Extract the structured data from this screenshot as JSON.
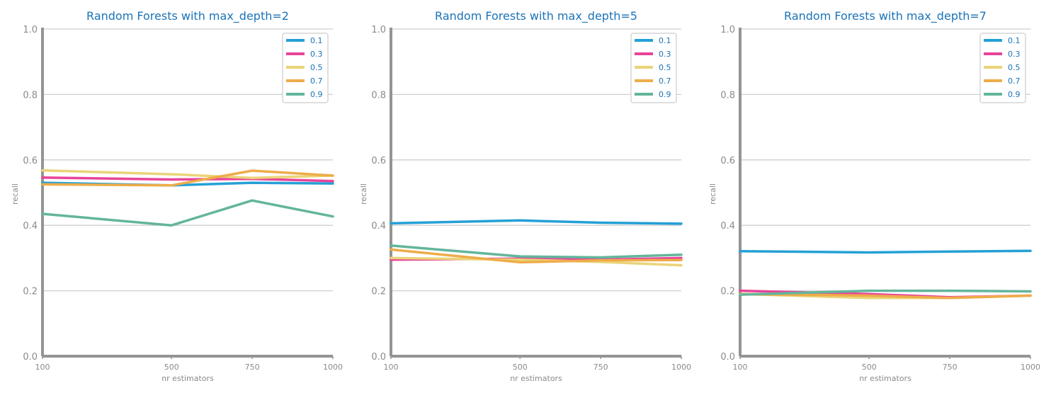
{
  "chart_data": [
    {
      "type": "line",
      "title": "Random Forests with max_depth=2",
      "xlabel": "nr estimators",
      "ylabel": "recall",
      "x": [
        100,
        500,
        750,
        1000
      ],
      "xlim": [
        100,
        1000
      ],
      "ylim": [
        0.0,
        1.0
      ],
      "yticks": [
        "0.0",
        "0.2",
        "0.4",
        "0.6",
        "0.8",
        "1.0"
      ],
      "xticks": [
        "100",
        "500",
        "750",
        "1000"
      ],
      "grid": "horizontal",
      "legend": "top-right",
      "series": [
        {
          "name": "0.1",
          "values": [
            0.53,
            0.522,
            0.53,
            0.528
          ]
        },
        {
          "name": "0.3",
          "values": [
            0.546,
            0.54,
            0.542,
            0.535
          ]
        },
        {
          "name": "0.5",
          "values": [
            0.568,
            0.556,
            0.545,
            0.552
          ]
        },
        {
          "name": "0.7",
          "values": [
            0.525,
            0.522,
            0.567,
            0.552
          ]
        },
        {
          "name": "0.9",
          "values": [
            0.435,
            0.4,
            0.476,
            0.427
          ]
        }
      ]
    },
    {
      "type": "line",
      "title": "Random Forests with max_depth=5",
      "xlabel": "nr estimators",
      "ylabel": "recall",
      "x": [
        100,
        500,
        750,
        1000
      ],
      "xlim": [
        100,
        1000
      ],
      "ylim": [
        0.0,
        1.0
      ],
      "yticks": [
        "0.0",
        "0.2",
        "0.4",
        "0.6",
        "0.8",
        "1.0"
      ],
      "xticks": [
        "100",
        "500",
        "750",
        "1000"
      ],
      "grid": "horizontal",
      "legend": "top-right",
      "series": [
        {
          "name": "0.1",
          "values": [
            0.406,
            0.415,
            0.408,
            0.405
          ]
        },
        {
          "name": "0.3",
          "values": [
            0.295,
            0.298,
            0.295,
            0.3
          ]
        },
        {
          "name": "0.5",
          "values": [
            0.3,
            0.295,
            0.288,
            0.278
          ]
        },
        {
          "name": "0.7",
          "values": [
            0.326,
            0.287,
            0.293,
            0.294
          ]
        },
        {
          "name": "0.9",
          "values": [
            0.338,
            0.305,
            0.302,
            0.31
          ]
        }
      ]
    },
    {
      "type": "line",
      "title": "Random Forests with max_depth=7",
      "xlabel": "nr estimators",
      "ylabel": "recall",
      "x": [
        100,
        500,
        750,
        1000
      ],
      "xlim": [
        100,
        1000
      ],
      "ylim": [
        0.0,
        1.0
      ],
      "yticks": [
        "0.0",
        "0.2",
        "0.4",
        "0.6",
        "0.8",
        "1.0"
      ],
      "xticks": [
        "100",
        "500",
        "750",
        "1000"
      ],
      "grid": "horizontal",
      "legend": "top-right",
      "series": [
        {
          "name": "0.1",
          "values": [
            0.321,
            0.317,
            0.32,
            0.322
          ]
        },
        {
          "name": "0.3",
          "values": [
            0.2,
            0.19,
            0.18,
            0.185
          ]
        },
        {
          "name": "0.5",
          "values": [
            0.19,
            0.178,
            0.178,
            0.185
          ]
        },
        {
          "name": "0.7",
          "values": [
            0.19,
            0.185,
            0.178,
            0.185
          ]
        },
        {
          "name": "0.9",
          "values": [
            0.188,
            0.2,
            0.2,
            0.198
          ]
        }
      ]
    }
  ],
  "colors": {
    "series": [
      "#25a0d6",
      "#e8449a",
      "#ead478",
      "#eeac4a",
      "#63b59c"
    ],
    "title": "#1a73b8",
    "axis": "#949494",
    "grid": "#cfcfcf",
    "tick_text": "#8a8a8a"
  }
}
